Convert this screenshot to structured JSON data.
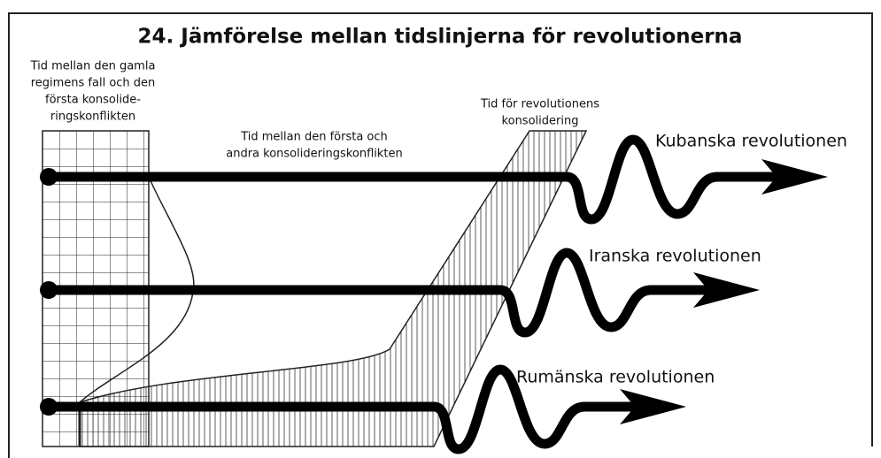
{
  "title": "24. Jämförelse mellan tidslinjerna för revolutionerna",
  "labels": {
    "first_interval": [
      "Tid mellan den gamla",
      "regimens fall och den",
      "första konsolide-",
      "ringskonflikten"
    ],
    "second_interval": [
      "Tid mellan  den första och",
      "andra konsolideringskonflikten"
    ],
    "consolidation": [
      "Tid för revolutionens",
      "konsolidering"
    ]
  },
  "timelines": [
    {
      "name": "Kubanska revolutionen"
    },
    {
      "name": "Iranska revolutionen"
    },
    {
      "name": "Rumänska revolutionen"
    }
  ]
}
